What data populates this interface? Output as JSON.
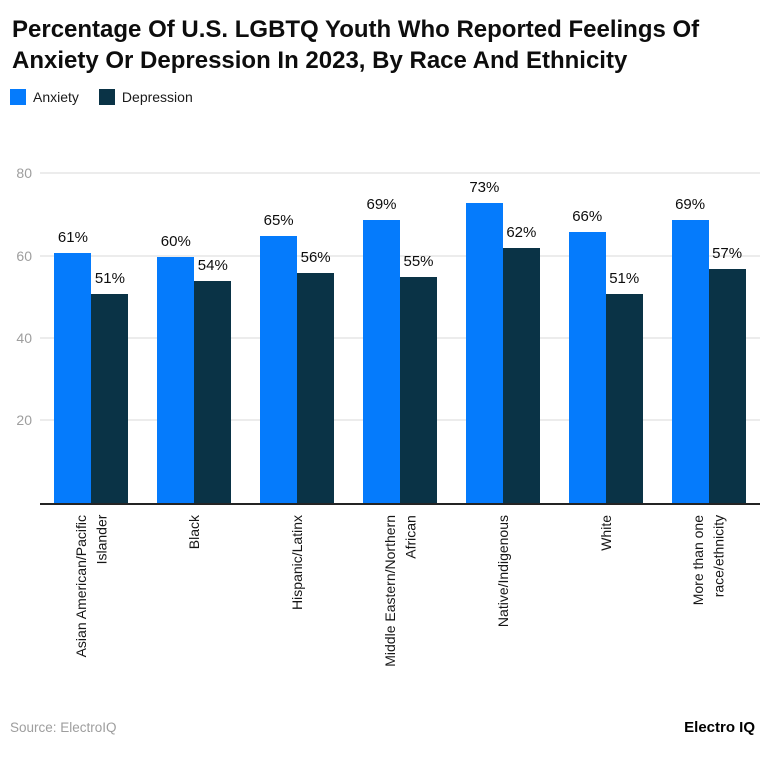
{
  "chart_data": {
    "type": "bar",
    "title": "Percentage Of U.S. LGBTQ Youth Who Reported Feelings Of Anxiety Or Depression In 2023, By Race And Ethnicity",
    "categories": [
      "Asian American/Pacific\nIslander",
      "Black",
      "Hispanic/Latinx",
      "Middle Eastern/Northern\nAfrican",
      "Native/Indigenous",
      "White",
      "More than one\nrace/ethnicity"
    ],
    "series": [
      {
        "name": "Anxiety",
        "color": "#057bfc",
        "values": [
          61,
          60,
          65,
          69,
          73,
          66,
          69
        ]
      },
      {
        "name": "Depression",
        "color": "#0a3346",
        "values": [
          51,
          54,
          56,
          55,
          62,
          51,
          57
        ]
      }
    ],
    "value_suffix": "%",
    "xlabel": "",
    "ylabel": "",
    "ylim": [
      0,
      80
    ],
    "yticks": [
      20,
      40,
      60,
      80
    ],
    "grid": true,
    "legend_position": "top-left"
  },
  "footer": {
    "source": "Source: ElectroIQ",
    "brand": "Electro IQ"
  }
}
